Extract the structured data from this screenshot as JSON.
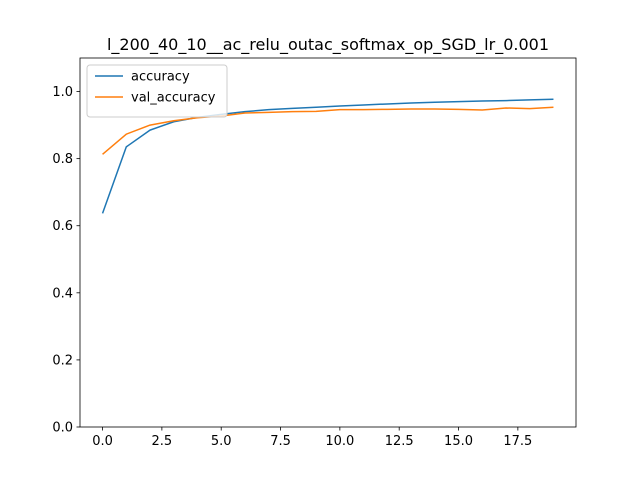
{
  "chart_data": {
    "type": "line",
    "title": "l_200_40_10__ac_relu_outac_softmax_op_SGD_lr_0.001",
    "xlabel": "",
    "ylabel": "",
    "xlim": [
      -0.95,
      19.95
    ],
    "ylim": [
      0.0,
      1.1
    ],
    "xticks": [
      "0.0",
      "2.5",
      "5.0",
      "7.5",
      "10.0",
      "12.5",
      "15.0",
      "17.5"
    ],
    "yticks": [
      "0.0",
      "0.2",
      "0.4",
      "0.6",
      "0.8",
      "1.0"
    ],
    "grid": false,
    "legend_position": "top-left",
    "x": [
      0,
      1,
      2,
      3,
      4,
      5,
      6,
      7,
      8,
      9,
      10,
      11,
      12,
      13,
      14,
      15,
      16,
      17,
      18,
      19
    ],
    "series": [
      {
        "name": "accuracy",
        "color": "#1f77b4",
        "values": [
          0.637,
          0.835,
          0.885,
          0.91,
          0.923,
          0.932,
          0.94,
          0.946,
          0.95,
          0.953,
          0.957,
          0.96,
          0.963,
          0.966,
          0.968,
          0.97,
          0.972,
          0.973,
          0.975,
          0.977
        ]
      },
      {
        "name": "val_accuracy",
        "color": "#ff7f0e",
        "values": [
          0.813,
          0.873,
          0.9,
          0.913,
          0.922,
          0.927,
          0.936,
          0.938,
          0.94,
          0.941,
          0.946,
          0.946,
          0.947,
          0.948,
          0.948,
          0.947,
          0.945,
          0.951,
          0.949,
          0.953
        ]
      }
    ]
  }
}
